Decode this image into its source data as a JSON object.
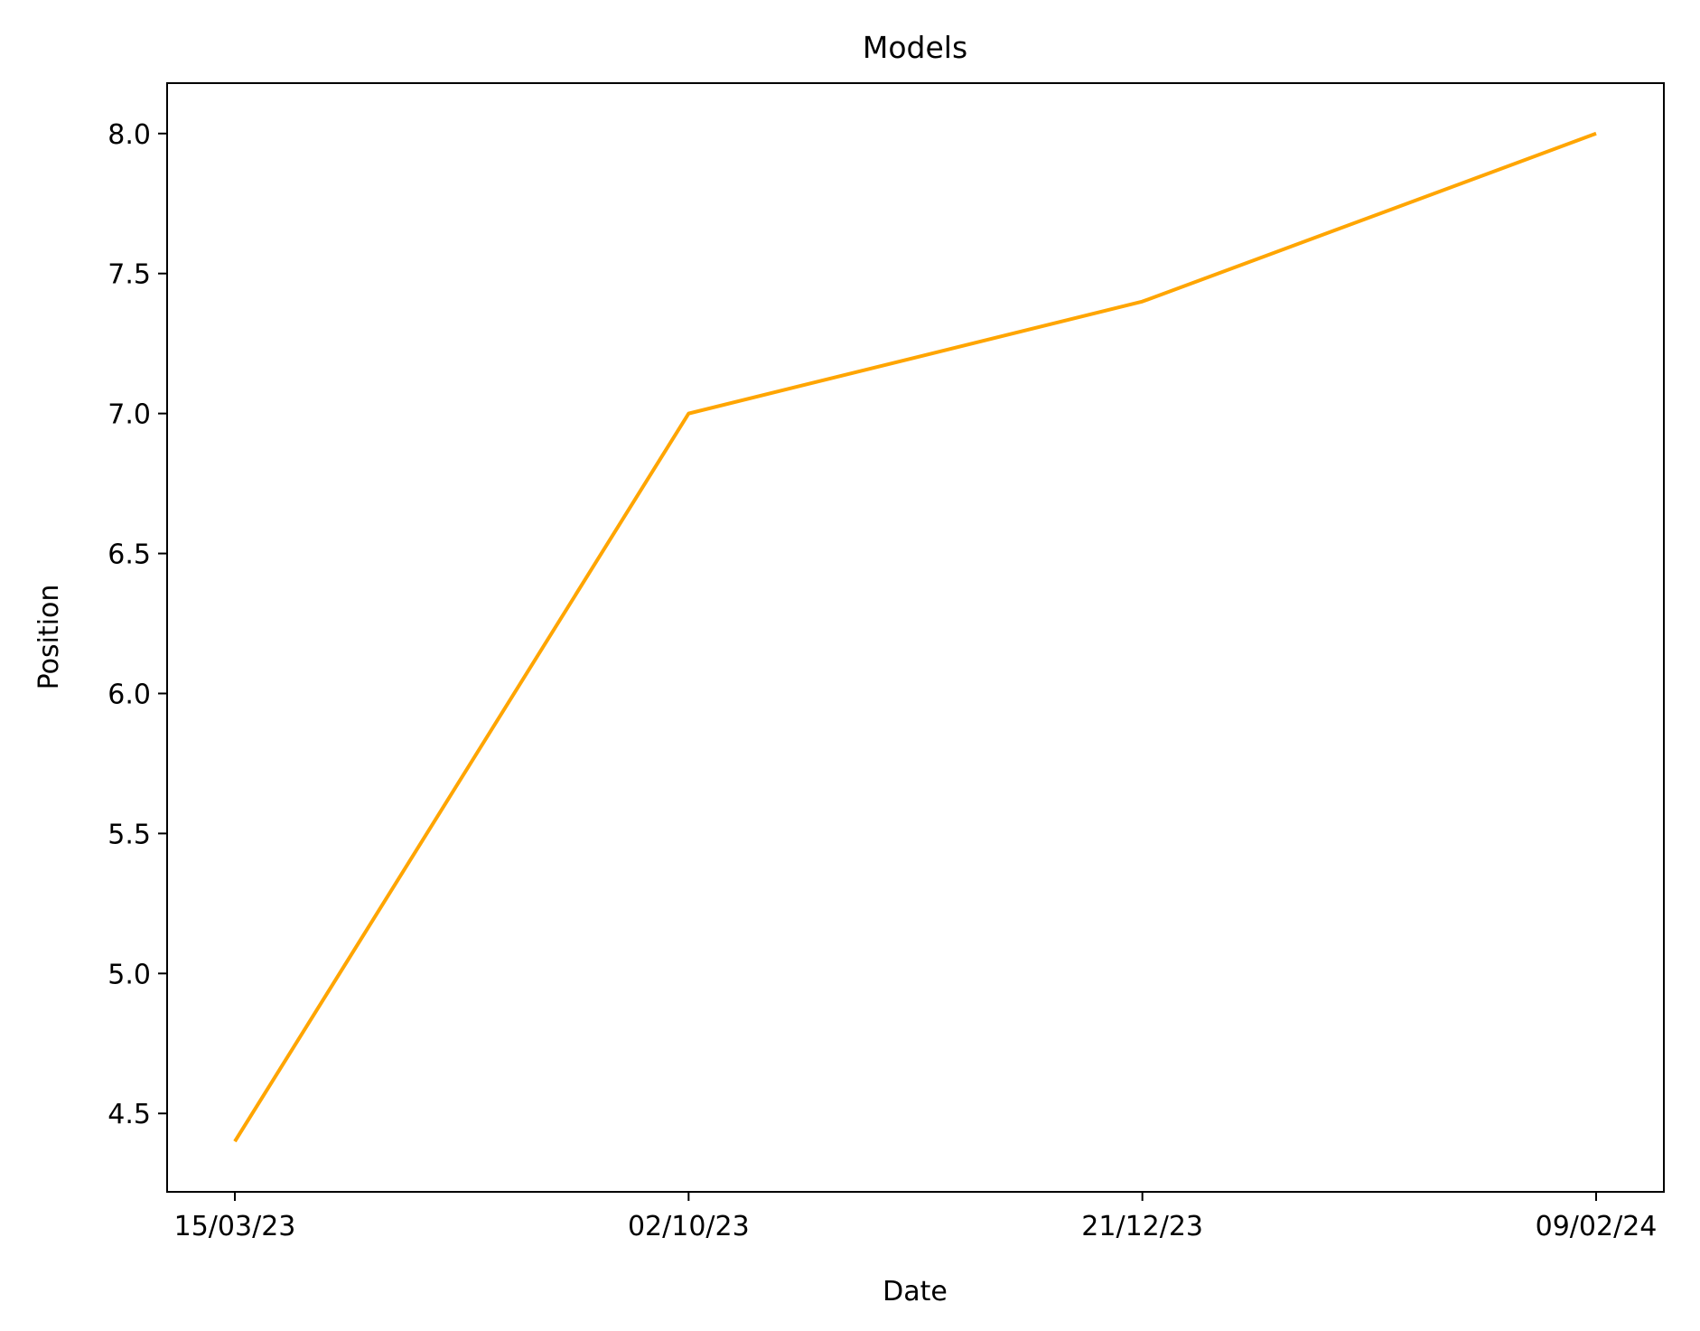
{
  "chart_data": {
    "type": "line",
    "title": "Models",
    "xlabel": "Date",
    "ylabel": "Position",
    "categories": [
      "15/03/23",
      "02/10/23",
      "21/12/23",
      "09/02/24"
    ],
    "series": [
      {
        "values": [
          4.4,
          7.0,
          7.4,
          8.0
        ],
        "color": "#FFA500"
      }
    ],
    "ylim": [
      4.22,
      8.18
    ],
    "yticks": [
      4.5,
      5.0,
      5.5,
      6.0,
      6.5,
      7.0,
      7.5,
      8.0
    ],
    "ytick_labels": [
      "4.5",
      "5.0",
      "5.5",
      "6.0",
      "6.5",
      "7.0",
      "7.5",
      "8.0"
    ],
    "grid": false,
    "legend": "none"
  }
}
